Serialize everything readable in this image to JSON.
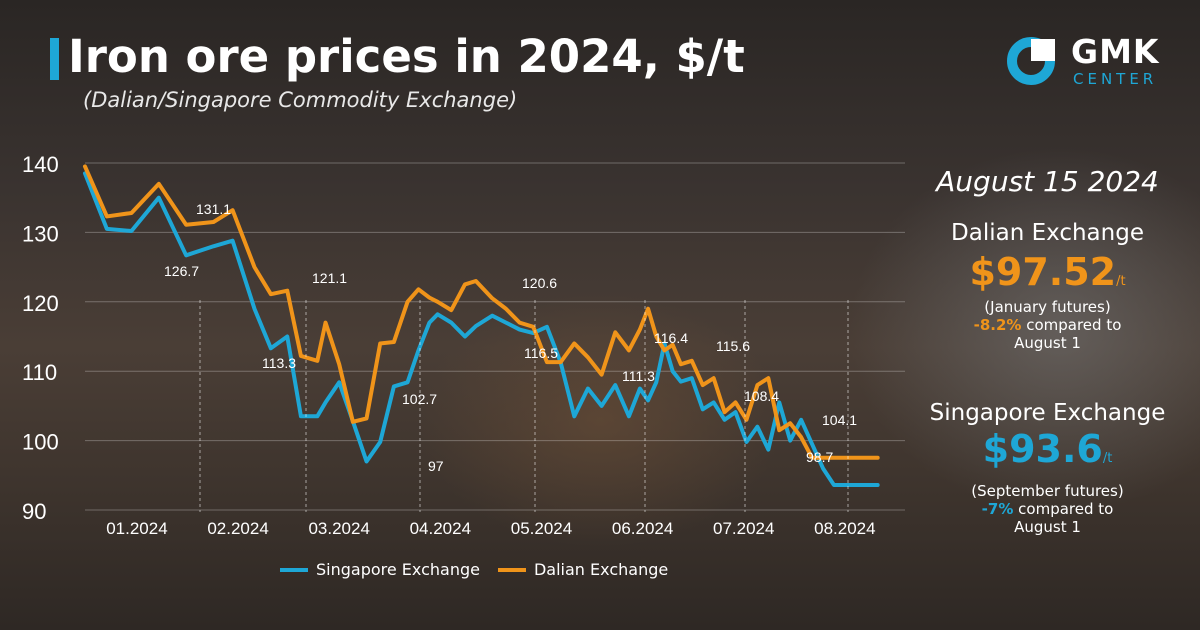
{
  "header": {
    "title": "Iron ore prices in 2024, $/t",
    "subtitle": "(Dalian/Singapore Commodity Exchange)"
  },
  "logo": {
    "name": "GMK",
    "sub": "CENTER"
  },
  "colors": {
    "singapore": "#1ea7d6",
    "dalian": "#f0941a"
  },
  "side_panel": {
    "date": "August 15 2024",
    "dalian": {
      "name": "Dalian Exchange",
      "price": "$97.52",
      "unit": "/t",
      "futures": "(January futures)",
      "change": "-8.2%",
      "change_text": "compared to",
      "ref_date": "August 1"
    },
    "singapore": {
      "name": "Singapore Exchange",
      "price": "$93.6",
      "unit": "/t",
      "futures": "(September futures)",
      "change": "-7%",
      "change_text": "compared to",
      "ref_date": "August 1"
    }
  },
  "chart_data": {
    "type": "line",
    "title": "Iron ore prices in 2024, $/t",
    "ylim": [
      90,
      140
    ],
    "yticks": [
      90,
      100,
      110,
      120,
      130,
      140
    ],
    "xlim": [
      0,
      30
    ],
    "xtick_labels": [
      "01.2024",
      "02.2024",
      "03.2024",
      "04.2024",
      "05.2024",
      "06.2024",
      "07.2024",
      "08.2024"
    ],
    "xtick_positions": [
      1.9,
      5.6,
      9.3,
      13.0,
      16.7,
      20.4,
      24.1,
      27.8
    ],
    "grid": true,
    "legend": "bottom-center",
    "series": [
      {
        "name": "Singapore Exchange",
        "key": "singapore",
        "x": [
          0,
          0.8,
          1.7,
          2.7,
          3.7,
          4.7,
          5.4,
          6.2,
          6.8,
          7.4,
          7.9,
          8.5,
          8.8,
          9.3,
          9.8,
          10.3,
          10.8,
          11.3,
          11.8,
          12.2,
          12.6,
          12.9,
          13.4,
          13.9,
          14.3,
          14.9,
          15.4,
          15.9,
          16.4,
          16.9,
          17.4,
          17.9,
          18.4,
          18.9,
          19.4,
          19.9,
          20.3,
          20.6,
          20.9,
          21.2,
          21.5,
          21.8,
          22.2,
          22.6,
          23.0,
          23.4,
          23.8,
          24.2,
          24.6,
          25.0,
          25.4,
          25.8,
          26.2,
          26.6,
          27.0,
          27.4,
          27.8,
          28.2,
          28.6,
          29.0
        ],
        "values": [
          138.5,
          130.5,
          130.2,
          135.0,
          126.7,
          128.0,
          128.8,
          119.0,
          113.3,
          115.0,
          103.5,
          103.5,
          105.5,
          108.4,
          102.8,
          97.0,
          99.8,
          107.8,
          108.4,
          113.0,
          117.0,
          118.2,
          117.0,
          115.0,
          116.5,
          118.0,
          117.0,
          116.0,
          115.5,
          116.4,
          111.3,
          103.5,
          107.5,
          105.0,
          108.0,
          103.5,
          107.5,
          105.8,
          108.4,
          114.0,
          110.0,
          108.5,
          109.0,
          104.5,
          105.5,
          103.0,
          104.1,
          99.8,
          102.0,
          98.7,
          105.5,
          100.0,
          103.0,
          99.5,
          96.0,
          93.6,
          93.6,
          93.6,
          93.6,
          93.6
        ]
      },
      {
        "name": "Dalian Exchange",
        "key": "dalian",
        "x": [
          0,
          0.8,
          1.7,
          2.7,
          3.7,
          4.7,
          5.4,
          6.2,
          6.8,
          7.4,
          7.9,
          8.5,
          8.8,
          9.3,
          9.8,
          10.3,
          10.8,
          11.3,
          11.8,
          12.2,
          12.6,
          12.9,
          13.4,
          13.9,
          14.3,
          14.9,
          15.4,
          15.9,
          16.4,
          16.9,
          17.4,
          17.9,
          18.4,
          18.9,
          19.4,
          19.9,
          20.3,
          20.6,
          20.9,
          21.2,
          21.5,
          21.8,
          22.2,
          22.6,
          23.0,
          23.4,
          23.8,
          24.2,
          24.6,
          25.0,
          25.4,
          25.8,
          26.2,
          26.6,
          27.0,
          27.4,
          27.8,
          28.2,
          28.6,
          29.0
        ],
        "values": [
          139.5,
          132.3,
          132.8,
          137.0,
          131.1,
          131.5,
          133.2,
          125.0,
          121.1,
          121.6,
          112.2,
          111.5,
          117.0,
          111.0,
          102.7,
          103.2,
          114.0,
          114.2,
          120.0,
          121.8,
          120.6,
          120.0,
          118.8,
          122.5,
          123.0,
          120.5,
          119.0,
          117.0,
          116.4,
          111.3,
          111.3,
          114.0,
          112.0,
          109.5,
          115.6,
          113.0,
          116.0,
          119.0,
          115.0,
          113.0,
          113.8,
          111.0,
          111.5,
          108.0,
          109.0,
          104.1,
          105.5,
          103.0,
          108.0,
          109.0,
          101.5,
          102.5,
          100.5,
          97.52,
          97.52,
          97.52,
          97.52,
          97.52,
          97.52,
          97.52
        ]
      }
    ],
    "annotations": [
      {
        "text": "126.7"
      },
      {
        "text": "131.1"
      },
      {
        "text": "113.3"
      },
      {
        "text": "121.1"
      },
      {
        "text": "97"
      },
      {
        "text": "102.7"
      },
      {
        "text": "120.6"
      },
      {
        "text": "116.5"
      },
      {
        "text": "116.4"
      },
      {
        "text": "111.3"
      },
      {
        "text": "115.6"
      },
      {
        "text": "108.4"
      },
      {
        "text": "104.1"
      },
      {
        "text": "98.7"
      }
    ]
  }
}
